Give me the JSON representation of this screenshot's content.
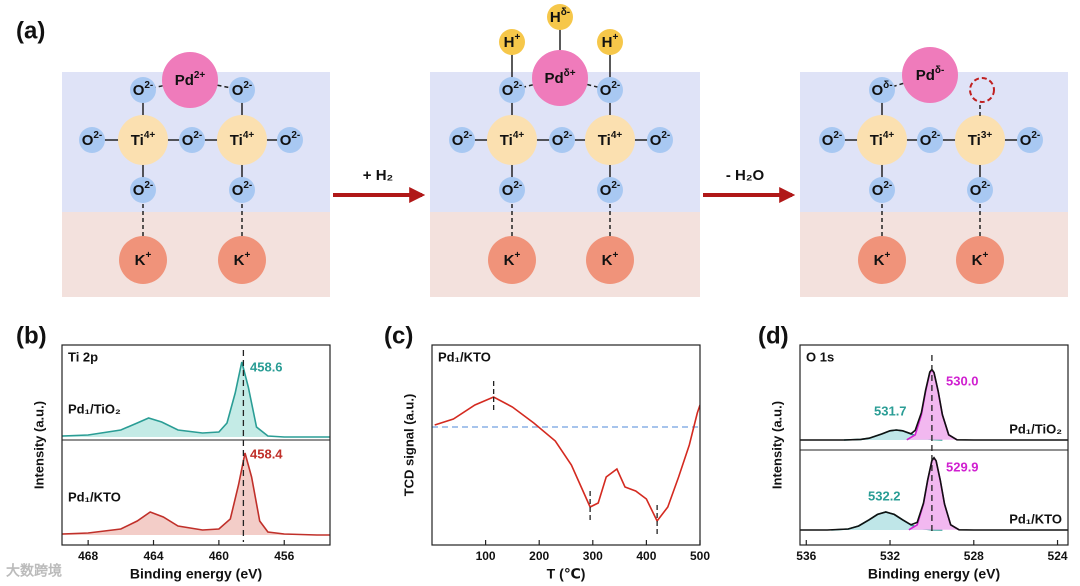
{
  "figure": {
    "panels": [
      "(a)",
      "(b)",
      "(c)",
      "(d)"
    ],
    "diagram": {
      "states": [
        {
          "atoms": [
            {
              "el": "Pd",
              "charge": "2+"
            },
            {
              "el": "O",
              "charge": "2-"
            },
            {
              "el": "O",
              "charge": "2-"
            },
            {
              "el": "O",
              "charge": "2-"
            },
            {
              "el": "Ti",
              "charge": "4+"
            },
            {
              "el": "O",
              "charge": "2-"
            },
            {
              "el": "Ti",
              "charge": "4+"
            },
            {
              "el": "O",
              "charge": "2-"
            },
            {
              "el": "O",
              "charge": "2-"
            },
            {
              "el": "O",
              "charge": "2-"
            },
            {
              "el": "K",
              "charge": "+"
            },
            {
              "el": "K",
              "charge": "+"
            }
          ]
        },
        {
          "atoms": [
            {
              "el": "H",
              "charge": "δ-"
            },
            {
              "el": "H",
              "charge": "+"
            },
            {
              "el": "H",
              "charge": "+"
            },
            {
              "el": "Pd",
              "charge": "δ+"
            },
            {
              "el": "O",
              "charge": "2-"
            },
            {
              "el": "O",
              "charge": "2-"
            },
            {
              "el": "O",
              "charge": "2-"
            },
            {
              "el": "Ti",
              "charge": "4+"
            },
            {
              "el": "O",
              "charge": "2-"
            },
            {
              "el": "Ti",
              "charge": "4+"
            },
            {
              "el": "O",
              "charge": "2-"
            },
            {
              "el": "O",
              "charge": "2-"
            },
            {
              "el": "O",
              "charge": "2-"
            },
            {
              "el": "K",
              "charge": "+"
            },
            {
              "el": "K",
              "charge": "+"
            }
          ]
        },
        {
          "atoms": [
            {
              "el": "Pd",
              "charge": "δ-"
            },
            {
              "el": "O",
              "charge": "δ-"
            },
            {
              "el": "O",
              "charge": "2-"
            },
            {
              "el": "Ti",
              "charge": "4+"
            },
            {
              "el": "O",
              "charge": "2-"
            },
            {
              "el": "Ti",
              "charge": "3+"
            },
            {
              "el": "O",
              "charge": "2-"
            },
            {
              "el": "O",
              "charge": "2-"
            },
            {
              "el": "O",
              "charge": "2-"
            },
            {
              "el": "K",
              "charge": "+"
            },
            {
              "el": "K",
              "charge": "+"
            }
          ]
        }
      ],
      "arrows": [
        "+ H₂",
        "- H₂O"
      ]
    },
    "watermark": "大数跨境"
  },
  "chart_data": [
    {
      "type": "line",
      "title": "Ti 2p",
      "xlabel": "Binding energy (eV)",
      "ylabel": "Intensity (a.u.)",
      "xlim": [
        469.6,
        453.2
      ],
      "xticks": [
        468,
        464,
        460,
        456
      ],
      "ylim": [
        0,
        10
      ],
      "vline": 458.5,
      "series": [
        {
          "name": "Pd₁/TiO₂",
          "color": "#2a9d95",
          "fill": "#c4ebe6",
          "peak": 458.6,
          "x": [
            469.6,
            468,
            466,
            465,
            464.3,
            463.5,
            462.5,
            461,
            460,
            459.5,
            459,
            458.6,
            458.2,
            457.7,
            457,
            456,
            454,
            453.2
          ],
          "values": [
            5.45,
            5.5,
            5.75,
            6.1,
            6.35,
            6.15,
            5.75,
            5.6,
            5.65,
            6.1,
            7.6,
            9.15,
            7.9,
            5.9,
            5.45,
            5.4,
            5.4,
            5.4
          ]
        },
        {
          "name": "Pd₁/KTO",
          "color": "#c0302a",
          "fill": "#f3cdc8",
          "peak": 458.4,
          "x": [
            469.6,
            468,
            466,
            465,
            464.2,
            463.4,
            462.5,
            461,
            460,
            459.3,
            458.8,
            458.4,
            458,
            457.5,
            457,
            456,
            454,
            453.2
          ],
          "values": [
            0.55,
            0.6,
            0.8,
            1.2,
            1.65,
            1.4,
            0.95,
            0.75,
            0.8,
            1.3,
            3.0,
            4.6,
            3.4,
            1.2,
            0.65,
            0.55,
            0.5,
            0.5
          ]
        }
      ]
    },
    {
      "type": "line",
      "xlabel": "T (℃)",
      "ylabel": "TCD signal (a.u.)",
      "xlim": [
        0,
        500
      ],
      "xticks": [
        100,
        200,
        300,
        400,
        500
      ],
      "ylim": [
        0,
        10
      ],
      "hline": 5.9,
      "markers": [
        115,
        295,
        420
      ],
      "series": [
        {
          "name": "Pd₁/KTO",
          "color": "#d42a20",
          "x": [
            5,
            40,
            80,
            115,
            150,
            190,
            230,
            260,
            280,
            295,
            310,
            325,
            345,
            360,
            380,
            400,
            420,
            440,
            460,
            480,
            495,
            500
          ],
          "values": [
            6.0,
            6.3,
            7.0,
            7.4,
            6.9,
            6.1,
            5.2,
            4.0,
            2.8,
            1.9,
            2.1,
            3.4,
            3.8,
            2.9,
            2.7,
            2.3,
            1.2,
            1.9,
            3.4,
            5.0,
            6.6,
            7.0
          ]
        }
      ]
    },
    {
      "type": "line",
      "title": "O 1s",
      "xlabel": "Binding energy (eV)",
      "ylabel": "Intensity (a.u.)",
      "xlim": [
        536.3,
        523.5
      ],
      "xticks": [
        536,
        532,
        528,
        524
      ],
      "ylim": [
        0,
        10
      ],
      "vline": 530,
      "series": [
        {
          "color": "#2a9d95",
          "fill": "#bfe6e8",
          "peak": 531.7,
          "x": [
            534.2,
            533.4,
            533,
            532.4,
            532,
            531.7,
            531.4,
            531,
            530.5,
            530,
            529.5
          ],
          "values": [
            5.25,
            5.28,
            5.34,
            5.55,
            5.71,
            5.75,
            5.71,
            5.55,
            5.37,
            5.28,
            5.25
          ]
        },
        {
          "color": "#d020d0",
          "fill": "#f2b8f0",
          "peak": {
            "value": 530,
            "label": "530.0"
          },
          "x": [
            531.2,
            530.8,
            530.5,
            530.3,
            530.1,
            530,
            529.9,
            529.7,
            529.5,
            529.2,
            528.8
          ],
          "values": [
            5.26,
            5.51,
            6.51,
            7.67,
            8.61,
            8.75,
            8.61,
            7.67,
            6.51,
            5.51,
            5.26
          ]
        },
        {
          "name": "Pd₁/TiO₂",
          "color": "#111111",
          "x": [
            536.3,
            535,
            534.2,
            533.4,
            533,
            532.4,
            532,
            531.7,
            531.4,
            531,
            530.8,
            530.5,
            530.3,
            530.1,
            530,
            529.9,
            529.7,
            529.5,
            529.2,
            528.8,
            528,
            526,
            523.5
          ],
          "values": [
            5.25,
            5.25,
            5.25,
            5.28,
            5.34,
            5.55,
            5.71,
            5.75,
            5.71,
            5.56,
            5.73,
            6.62,
            7.74,
            8.65,
            8.78,
            8.63,
            7.68,
            6.51,
            5.51,
            5.26,
            5.25,
            5.25,
            5.25
          ]
        },
        {
          "color": "#2a9d95",
          "fill": "#bfe6e8",
          "peak": 532.2,
          "x": [
            534.8,
            534,
            533.5,
            533,
            532.6,
            532.2,
            531.8,
            531.4,
            531,
            530.5,
            530,
            529.5
          ],
          "values": [
            0.75,
            0.8,
            0.95,
            1.26,
            1.53,
            1.65,
            1.53,
            1.26,
            1.0,
            0.82,
            0.76,
            0.75
          ]
        },
        {
          "color": "#d020d0",
          "fill": "#f2b8f0",
          "peak": 529.9,
          "x": [
            531.1,
            530.7,
            530.4,
            530.2,
            530,
            529.9,
            529.8,
            529.6,
            529.4,
            529.1,
            528.7
          ],
          "values": [
            0.76,
            1.01,
            2.05,
            3.23,
            4.21,
            4.35,
            4.21,
            3.23,
            2.05,
            1.01,
            0.76
          ]
        },
        {
          "name": "Pd₁/KTO",
          "color": "#111111",
          "x": [
            536.3,
            535,
            534,
            533.5,
            533,
            532.6,
            532.2,
            531.8,
            531.4,
            531,
            530.7,
            530.4,
            530.2,
            530,
            529.9,
            529.8,
            529.6,
            529.4,
            529.1,
            528.7,
            528,
            526,
            523.5
          ],
          "values": [
            0.75,
            0.75,
            0.8,
            0.95,
            1.26,
            1.53,
            1.65,
            1.53,
            1.26,
            1.01,
            1.13,
            2.1,
            3.26,
            4.22,
            4.36,
            4.21,
            3.23,
            2.05,
            1.01,
            0.76,
            0.75,
            0.75,
            0.75
          ]
        }
      ]
    }
  ]
}
